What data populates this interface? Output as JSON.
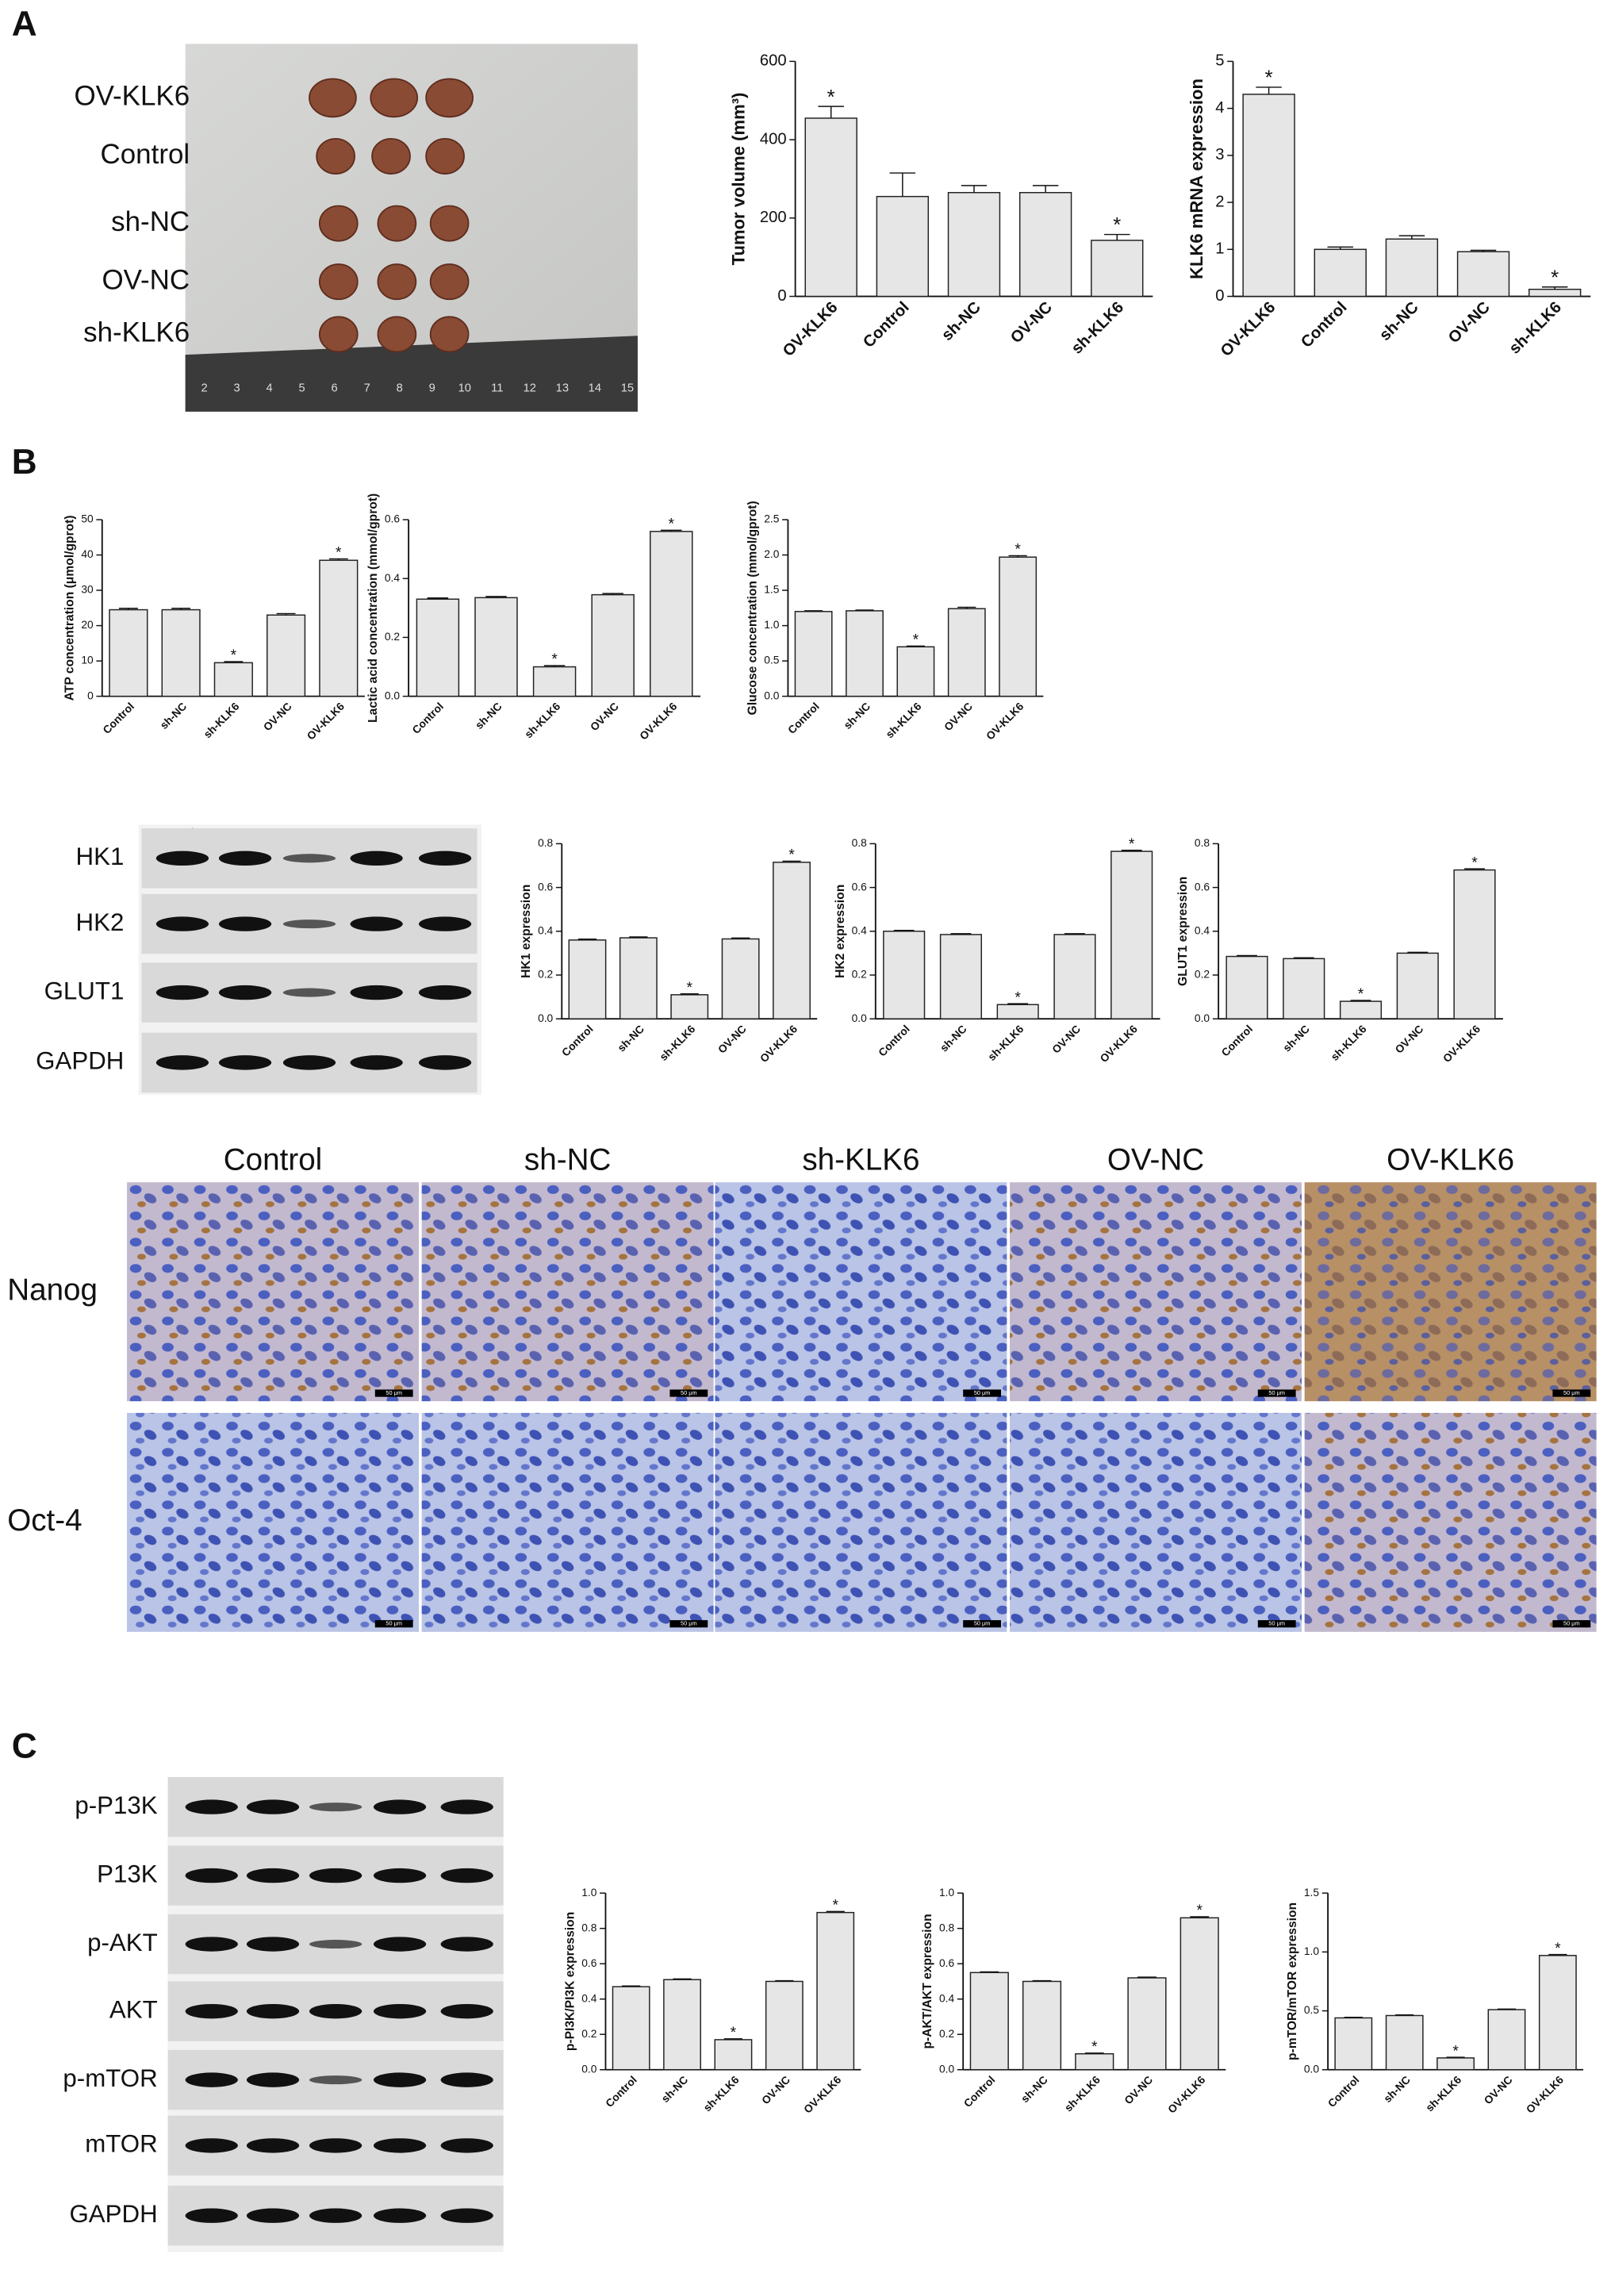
{
  "panel_labels": [
    "A",
    "B",
    "C"
  ],
  "tumor_photo": {
    "groups": [
      "OV-KLK6",
      "Control",
      "sh-NC",
      "OV-NC",
      "sh-KLK6"
    ],
    "ruler": [
      2,
      3,
      4,
      5,
      6,
      7,
      8,
      9,
      10,
      11,
      12,
      13,
      14,
      15
    ]
  },
  "western_blot_b": {
    "lanes": [
      "Control",
      "sh-NC",
      "sh-KLK6",
      "OV-NC",
      "OV-KLK6"
    ],
    "rows": [
      "HK1",
      "HK2",
      "GLUT1",
      "GAPDH"
    ]
  },
  "ihc": {
    "columns": [
      "Control",
      "sh-NC",
      "sh-KLK6",
      "OV-NC",
      "OV-KLK6"
    ],
    "rows": [
      "Nanog",
      "Oct-4"
    ],
    "scale_bar": "50 μm"
  },
  "western_blot_c": {
    "lanes": [
      "Control",
      "sh-NC",
      "sh-KLK6",
      "OV-NC",
      "OV-KLK6"
    ],
    "rows": [
      "p-P13K",
      "P13K",
      "p-AKT",
      "AKT",
      "p-mTOR",
      "mTOR",
      "GAPDH"
    ]
  },
  "chart_data": [
    {
      "type": "bar",
      "y_label": "Tumor volume (mm³)",
      "categories": [
        "OV-KLK6",
        "Control",
        "sh-NC",
        "OV-NC",
        "sh-KLK6"
      ],
      "values": [
        455,
        255,
        265,
        265,
        143
      ],
      "errors": [
        30,
        60,
        18,
        18,
        15
      ],
      "stars": [
        "*",
        null,
        null,
        null,
        "*"
      ],
      "color": "#e6e6e6",
      "ylim": [
        0,
        600
      ],
      "yticks": [
        0,
        200,
        400,
        600
      ]
    },
    {
      "type": "bar",
      "y_label": "KLK6 mRNA expression",
      "categories": [
        "OV-KLK6",
        "Control",
        "sh-NC",
        "OV-NC",
        "sh-KLK6"
      ],
      "values": [
        4.3,
        1.0,
        1.22,
        0.95,
        0.15
      ],
      "errors": [
        0.15,
        0.05,
        0.07,
        0.03,
        0.05
      ],
      "stars": [
        "*",
        null,
        null,
        null,
        "*"
      ],
      "color": "#e6e6e6",
      "ylim": [
        0,
        5
      ],
      "yticks": [
        0,
        1,
        2,
        3,
        4,
        5
      ]
    },
    {
      "type": "bar",
      "y_label": "ATP concentration (μmol/gprot)",
      "categories": [
        "Control",
        "sh-NC",
        "sh-KLK6",
        "OV-NC",
        "OV-KLK6"
      ],
      "values": [
        24.5,
        24.5,
        9.5,
        23,
        38.5
      ],
      "errors": [
        0.4,
        0.4,
        0.3,
        0.4,
        0.4
      ],
      "stars": [
        null,
        null,
        "*",
        null,
        "*"
      ],
      "color": "#e6e6e6",
      "ylim": [
        0,
        50
      ],
      "yticks": [
        0,
        10,
        20,
        30,
        40,
        50
      ]
    },
    {
      "type": "bar",
      "y_label": "Lactic acid concentration (mmol/gprot)",
      "categories": [
        "Control",
        "sh-NC",
        "sh-KLK6",
        "OV-NC",
        "OV-KLK6"
      ],
      "values": [
        0.33,
        0.335,
        0.1,
        0.345,
        0.56
      ],
      "errors": [
        0.004,
        0.004,
        0.004,
        0.004,
        0.004
      ],
      "stars": [
        null,
        null,
        "*",
        null,
        "*"
      ],
      "color": "#e6e6e6",
      "ylim": [
        0,
        0.6
      ],
      "yticks": [
        {
          "value": 0,
          "label": "0.0"
        },
        0.2,
        0.4,
        0.6
      ]
    },
    {
      "type": "bar",
      "y_label": "Glucose concentration (mmol/gprot)",
      "categories": [
        "Control",
        "sh-NC",
        "sh-KLK6",
        "OV-NC",
        "OV-KLK6"
      ],
      "values": [
        1.2,
        1.21,
        0.7,
        1.24,
        1.97
      ],
      "errors": [
        0.01,
        0.01,
        0.01,
        0.02,
        0.02
      ],
      "stars": [
        null,
        null,
        "*",
        null,
        "*"
      ],
      "color": "#e6e6e6",
      "ylim": [
        0,
        2.5
      ],
      "yticks": [
        {
          "value": 0,
          "label": "0.0"
        },
        0.5,
        {
          "value": 1,
          "label": "1.0"
        },
        1.5,
        {
          "value": 2,
          "label": "2.0"
        },
        2.5
      ]
    },
    {
      "type": "bar",
      "y_label": "HK1 expression",
      "categories": [
        "Control",
        "sh-NC",
        "sh-KLK6",
        "OV-NC",
        "OV-KLK6"
      ],
      "values": [
        0.36,
        0.37,
        0.11,
        0.365,
        0.715
      ],
      "errors": [
        0.004,
        0.004,
        0.004,
        0.004,
        0.005
      ],
      "stars": [
        null,
        null,
        "*",
        null,
        "*"
      ],
      "color": "#e6e6e6",
      "ylim": [
        0,
        0.8
      ],
      "yticks": [
        {
          "value": 0,
          "label": "0.0"
        },
        0.2,
        0.4,
        0.6,
        0.8
      ]
    },
    {
      "type": "bar",
      "y_label": "HK2 expression",
      "categories": [
        "Control",
        "sh-NC",
        "sh-KLK6",
        "OV-NC",
        "OV-KLK6"
      ],
      "values": [
        0.4,
        0.385,
        0.065,
        0.385,
        0.765
      ],
      "errors": [
        0.004,
        0.004,
        0.004,
        0.004,
        0.005
      ],
      "stars": [
        null,
        null,
        "*",
        null,
        "*"
      ],
      "color": "#e6e6e6",
      "ylim": [
        0,
        0.8
      ],
      "yticks": [
        {
          "value": 0,
          "label": "0.0"
        },
        0.2,
        0.4,
        0.6,
        0.8
      ]
    },
    {
      "type": "bar",
      "y_label": "GLUT1 expression",
      "categories": [
        "Control",
        "sh-NC",
        "sh-KLK6",
        "OV-NC",
        "OV-KLK6"
      ],
      "values": [
        0.285,
        0.275,
        0.08,
        0.3,
        0.68
      ],
      "errors": [
        0.004,
        0.004,
        0.004,
        0.004,
        0.005
      ],
      "stars": [
        null,
        null,
        "*",
        null,
        "*"
      ],
      "color": "#e6e6e6",
      "ylim": [
        0,
        0.8
      ],
      "yticks": [
        {
          "value": 0,
          "label": "0.0"
        },
        0.2,
        0.4,
        0.6,
        0.8
      ]
    },
    {
      "type": "bar",
      "y_label": "p-PI3K/PI3K expression",
      "categories": [
        "Control",
        "sh-NC",
        "sh-KLK6",
        "OV-NC",
        "OV-KLK6"
      ],
      "values": [
        0.47,
        0.51,
        0.17,
        0.5,
        0.89
      ],
      "errors": [
        0.004,
        0.004,
        0.005,
        0.004,
        0.006
      ],
      "stars": [
        null,
        null,
        "*",
        null,
        "*"
      ],
      "color": "#e6e6e6",
      "ylim": [
        0,
        1
      ],
      "yticks": [
        {
          "value": 0,
          "label": "0.0"
        },
        0.2,
        0.4,
        0.6,
        0.8,
        {
          "value": 1,
          "label": "1.0"
        }
      ]
    },
    {
      "type": "bar",
      "y_label": "p-AKT/AKT expression",
      "categories": [
        "Control",
        "sh-NC",
        "sh-KLK6",
        "OV-NC",
        "OV-KLK6"
      ],
      "values": [
        0.55,
        0.5,
        0.09,
        0.52,
        0.86
      ],
      "errors": [
        0.004,
        0.004,
        0.004,
        0.004,
        0.006
      ],
      "stars": [
        null,
        null,
        "*",
        null,
        "*"
      ],
      "color": "#e6e6e6",
      "ylim": [
        0,
        1
      ],
      "yticks": [
        {
          "value": 0,
          "label": "0.0"
        },
        0.2,
        0.4,
        0.6,
        0.8,
        {
          "value": 1,
          "label": "1.0"
        }
      ]
    },
    {
      "type": "bar",
      "y_label": "p-mTOR/mTOR expression",
      "categories": [
        "Control",
        "sh-NC",
        "sh-KLK6",
        "OV-NC",
        "OV-KLK6"
      ],
      "values": [
        0.44,
        0.46,
        0.1,
        0.51,
        0.97
      ],
      "errors": [
        0.005,
        0.005,
        0.005,
        0.005,
        0.008
      ],
      "stars": [
        null,
        null,
        "*",
        null,
        "*"
      ],
      "color": "#e6e6e6",
      "ylim": [
        0,
        1.5
      ],
      "yticks": [
        {
          "value": 0,
          "label": "0.0"
        },
        0.5,
        {
          "value": 1,
          "label": "1.0"
        },
        1.5
      ]
    }
  ]
}
